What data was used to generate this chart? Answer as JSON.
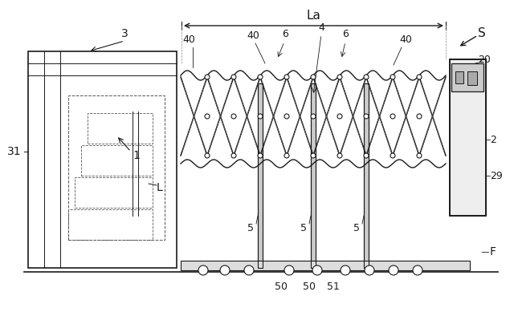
{
  "bg_color": "#ffffff",
  "line_color": "#1a1a1a",
  "dashed_color": "#555555",
  "light_gray": "#aaaaaa",
  "fig_width": 6.4,
  "fig_height": 3.89,
  "labels": {
    "La": "La",
    "S": "S",
    "3": "3",
    "31": "31",
    "1": "1",
    "L": "L",
    "40_left": "40",
    "40_mid": "40",
    "40_right": "40",
    "6_left": "6",
    "6_right": "6",
    "4": "4",
    "5_1": "5",
    "5_2": "5",
    "5_3": "5",
    "20": "20",
    "2": "2",
    "29": "29",
    "50_1": "50",
    "50_2": "50",
    "51": "51",
    "F": "F"
  }
}
